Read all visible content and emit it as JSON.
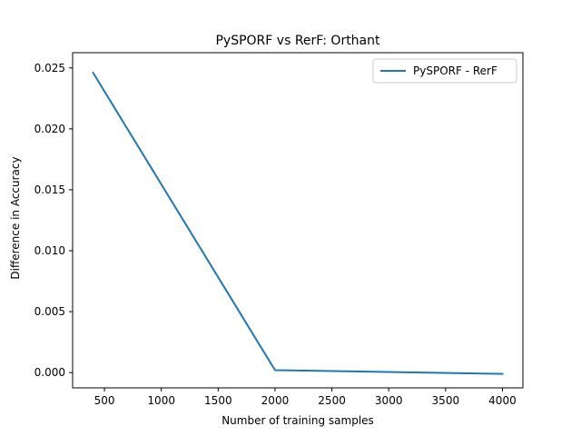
{
  "chart_data": {
    "type": "line",
    "title": "PySPORF vs RerF: Orthant",
    "xlabel": "Number of training samples",
    "ylabel": "Difference in Accuracy",
    "xlim": [
      220,
      4180
    ],
    "ylim": [
      -0.00125,
      0.02625
    ],
    "x_ticks": [
      500,
      1000,
      1500,
      2000,
      2500,
      3000,
      3500,
      4000
    ],
    "x_tick_labels": [
      "500",
      "1000",
      "1500",
      "2000",
      "2500",
      "3000",
      "3500",
      "4000"
    ],
    "y_ticks": [
      0.0,
      0.005,
      0.01,
      0.015,
      0.02,
      0.025
    ],
    "y_tick_labels": [
      "0.000",
      "0.005",
      "0.010",
      "0.015",
      "0.020",
      "0.025"
    ],
    "grid": false,
    "legend_position": "top-right",
    "series": [
      {
        "name": "PySPORF - RerF",
        "color": "#1f77b4",
        "x": [
          400,
          2000,
          4000
        ],
        "y": [
          0.0246,
          0.0002,
          -0.0001
        ]
      }
    ]
  }
}
